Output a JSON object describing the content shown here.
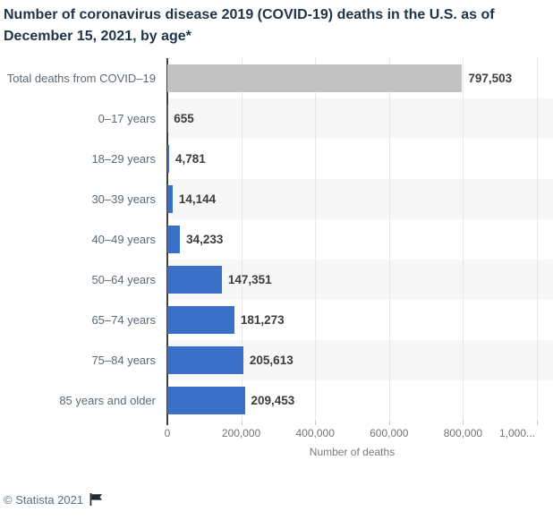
{
  "title": "Number of coronavirus disease 2019 (COVID-19) deaths in the U.S. as of December 15, 2021, by age*",
  "chart_data": {
    "type": "bar",
    "orientation": "horizontal",
    "title": "Number of coronavirus disease 2019 (COVID-19) deaths in the U.S. as of December 15, 2021, by age*",
    "categories": [
      "Total deaths from COVID–19",
      "0–17 years",
      "18–29 years",
      "30–39 years",
      "40–49 years",
      "50–64 years",
      "65–74 years",
      "75–84 years",
      "85 years and older"
    ],
    "values": [
      797503,
      655,
      4781,
      14144,
      34233,
      147351,
      181273,
      205613,
      209453
    ],
    "value_labels": [
      "797,503",
      "655",
      "4,781",
      "14,144",
      "34,233",
      "147,351",
      "181,273",
      "205,613",
      "209,453"
    ],
    "bar_colors": [
      "#c2c2c2",
      "#3b70c9",
      "#3b70c9",
      "#3b70c9",
      "#3b70c9",
      "#3b70c9",
      "#3b70c9",
      "#3b70c9",
      "#3b70c9"
    ],
    "xlabel": "Number of deaths",
    "ylabel": "",
    "xlim": [
      0,
      1000000
    ],
    "x_ticks": [
      {
        "value": 0,
        "label": "0"
      },
      {
        "value": 200000,
        "label": "200,000"
      },
      {
        "value": 400000,
        "label": "400,000"
      },
      {
        "value": 600000,
        "label": "600,000"
      },
      {
        "value": 800000,
        "label": "800,000"
      },
      {
        "value": 1000000,
        "label": "1,000..."
      }
    ],
    "grid": true,
    "alternating_row_bands": true,
    "legend": "none"
  },
  "colors": {
    "bar_blue": "#3b70c9",
    "bar_gray": "#c2c2c2",
    "band": "#f7f7f7",
    "gridline": "#e8e8e8",
    "axis_line": "#3f3f3f",
    "tick_mark": "#c9c9c9",
    "title": "#1e3448",
    "category_label": "#5d6974",
    "value_label": "#3c3c3c",
    "tick_label": "#737373",
    "footer": "#5b7083",
    "flag": "#1d2b36"
  },
  "footer": {
    "copyright": "© Statista 2021"
  }
}
